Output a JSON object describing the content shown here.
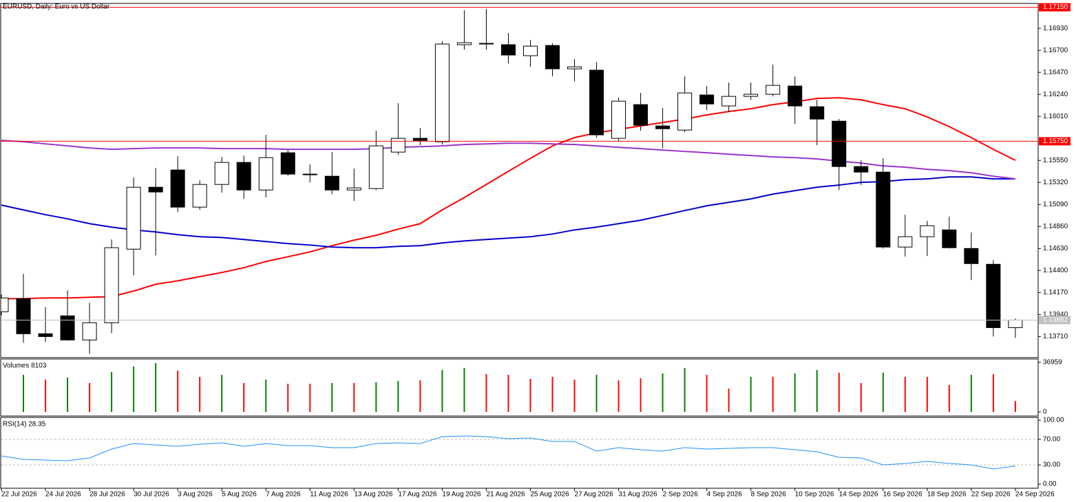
{
  "chart_data": [
    {
      "type": "candlestick",
      "title": "EURUSD, Daily:  Euro vs US Dollar",
      "categories": [
        "22 Jul 2026",
        null,
        "24 Jul 2026",
        null,
        "28 Jul 2026",
        null,
        "30 Jul 2026",
        null,
        "3 Aug 2026",
        null,
        "5 Aug 2026",
        null,
        "7 Aug 2026",
        null,
        "11 Aug 2026",
        null,
        "13 Aug 2026",
        null,
        "17 Aug 2026",
        null,
        "19 Aug 2026",
        null,
        "21 Aug 2026",
        null,
        "25 Aug 2026",
        null,
        "27 Aug 2026",
        null,
        "31 Aug 2026",
        null,
        "2 Sep 2026",
        null,
        "4 Sep 2026",
        null,
        "8 Sep 2026",
        null,
        "10 Sep 2026",
        null,
        "14 Sep 2026",
        null,
        "16 Sep 2026",
        null,
        "18 Sep 2026",
        null,
        "22 Sep 2026",
        null,
        "24 Sep 2026"
      ],
      "open": [
        1.13969,
        1.14105,
        1.13739,
        1.13926,
        1.13674,
        1.13854,
        1.14623,
        1.1527,
        1.1545,
        1.15062,
        1.15299,
        1.15529,
        1.15241,
        1.1563,
        1.15407,
        1.15385,
        1.15241,
        1.15256,
        1.15637,
        1.15781,
        1.15745,
        1.16759,
        1.16773,
        1.16759,
        1.16644,
        1.16751,
        1.16507,
        1.16493,
        1.15781,
        1.16133,
        1.1591,
        1.15867,
        1.16234,
        1.16119,
        1.16219,
        1.16241,
        1.16327,
        1.16111,
        1.1596,
        1.15486,
        1.15428,
        1.14645,
        1.14753,
        1.14824,
        1.1463,
        1.14465,
        1.13803
      ],
      "high": [
        1.14149,
        1.14364,
        1.14019,
        1.14192,
        1.14062,
        1.14724,
        1.15371,
        1.15472,
        1.15594,
        1.15342,
        1.15587,
        1.15601,
        1.15817,
        1.15658,
        1.15508,
        1.15637,
        1.15464,
        1.1586,
        1.16147,
        1.15889,
        1.16795,
        1.17118,
        1.17132,
        1.16881,
        1.16809,
        1.16773,
        1.16608,
        1.16579,
        1.16205,
        1.16255,
        1.16097,
        1.16428,
        1.16327,
        1.16363,
        1.16363,
        1.1655,
        1.16428,
        1.16183,
        1.15982,
        1.15551,
        1.15572,
        1.14983,
        1.14918,
        1.14961,
        1.14796,
        1.14508,
        1.13897
      ],
      "low": [
        1.13933,
        1.13645,
        1.13652,
        1.13667,
        1.1353,
        1.13746,
        1.1435,
        1.14558,
        1.15011,
        1.15033,
        1.15213,
        1.15148,
        1.15162,
        1.15392,
        1.15321,
        1.15198,
        1.15126,
        1.15241,
        1.15608,
        1.15709,
        1.15716,
        1.16708,
        1.16708,
        1.16564,
        1.16528,
        1.16428,
        1.16377,
        1.15788,
        1.15752,
        1.1586,
        1.1568,
        1.15845,
        1.16076,
        1.16054,
        1.16183,
        1.16219,
        1.15932,
        1.15709,
        1.15241,
        1.15292,
        1.1463,
        1.14544,
        1.14551,
        1.1463,
        1.143,
        1.1371,
        1.13696
      ],
      "close": [
        1.14113,
        1.13739,
        1.1371,
        1.13674,
        1.13854,
        1.14638,
        1.1527,
        1.1522,
        1.15062,
        1.15299,
        1.15529,
        1.15241,
        1.15579,
        1.15407,
        1.154,
        1.15241,
        1.15263,
        1.15702,
        1.15781,
        1.15759,
        1.16766,
        1.1678,
        1.16766,
        1.16651,
        1.16744,
        1.16507,
        1.16528,
        1.15817,
        1.16169,
        1.15917,
        1.15881,
        1.16255,
        1.1614,
        1.16219,
        1.16241,
        1.16334,
        1.16119,
        1.15982,
        1.15486,
        1.15428,
        1.14645,
        1.14753,
        1.14868,
        1.14638,
        1.14472,
        1.13803,
        1.13882
      ],
      "up_color": "#ffffff",
      "down_color": "#000000",
      "lines": [
        {
          "color": "#ff0000",
          "values": [
            1.14105,
            1.14105,
            1.14113,
            1.14113,
            1.1412,
            1.14127,
            1.14185,
            1.14256,
            1.14292,
            1.14336,
            1.14379,
            1.14429,
            1.14494,
            1.14544,
            1.14594,
            1.14659,
            1.14717,
            1.14767,
            1.14832,
            1.14889,
            1.15033,
            1.15162,
            1.15299,
            1.15436,
            1.15572,
            1.15702,
            1.15788,
            1.15838,
            1.15874,
            1.1591,
            1.15946,
            1.15982,
            1.16025,
            1.16061,
            1.1609,
            1.16133,
            1.16162,
            1.16198,
            1.16205,
            1.16183,
            1.16133,
            1.1609,
            1.16004,
            1.15903,
            1.15788,
            1.15666,
            1.15551
          ]
        },
        {
          "color": "#0000cd",
          "values": [
            1.15083,
            1.15033,
            1.14983,
            1.1494,
            1.14889,
            1.14853,
            1.14824,
            1.14803,
            1.14774,
            1.14753,
            1.14745,
            1.14724,
            1.14702,
            1.14681,
            1.14666,
            1.14645,
            1.14638,
            1.14638,
            1.14652,
            1.14659,
            1.14688,
            1.14709,
            1.14724,
            1.14738,
            1.14753,
            1.14781,
            1.14824,
            1.14853,
            1.14889,
            1.14925,
            1.14975,
            1.15026,
            1.15076,
            1.15112,
            1.15148,
            1.15198,
            1.15234,
            1.1527,
            1.15292,
            1.15321,
            1.15328,
            1.15349,
            1.15357,
            1.15378,
            1.15378,
            1.15357,
            1.15357
          ]
        },
        {
          "color": "#9932cc",
          "values": [
            1.15759,
            1.15745,
            1.15723,
            1.15702,
            1.1568,
            1.15666,
            1.15673,
            1.1568,
            1.1568,
            1.1568,
            1.15673,
            1.15673,
            1.15673,
            1.15666,
            1.15666,
            1.15666,
            1.15666,
            1.15673,
            1.15687,
            1.15694,
            1.15702,
            1.15716,
            1.15723,
            1.1573,
            1.1573,
            1.15723,
            1.15716,
            1.15702,
            1.15687,
            1.15673,
            1.15658,
            1.15644,
            1.1563,
            1.15615,
            1.15601,
            1.15587,
            1.15579,
            1.15565,
            1.15543,
            1.15522,
            1.15493,
            1.15479,
            1.15457,
            1.15443,
            1.15421,
            1.15385,
            1.15357
          ]
        }
      ],
      "ylim": [
        1.1349,
        1.1719
      ],
      "yticks": [
        {
          "value": 1.1693,
          "label": "1.16930"
        },
        {
          "value": 1.167,
          "label": "1.16700"
        },
        {
          "value": 1.1647,
          "label": "1.16470"
        },
        {
          "value": 1.1624,
          "label": "1.16240"
        },
        {
          "value": 1.1601,
          "label": "1.16010"
        },
        {
          "value": 1.1555,
          "label": "1.15550"
        },
        {
          "value": 1.1532,
          "label": "1.15320"
        },
        {
          "value": 1.1509,
          "label": "1.15090"
        },
        {
          "value": 1.1486,
          "label": "1.14860"
        },
        {
          "value": 1.1463,
          "label": "1.14630"
        },
        {
          "value": 1.144,
          "label": "1.14400"
        },
        {
          "value": 1.1417,
          "label": "1.14170"
        },
        {
          "value": 1.1394,
          "label": "1.13940"
        },
        {
          "value": 1.1371,
          "label": "1.13710"
        }
      ],
      "hlines": [
        {
          "value": 1.1715,
          "label": "1.17150",
          "color": "#ff0000"
        },
        {
          "value": 1.1575,
          "label": "1.15750",
          "color": "#ff0000"
        }
      ],
      "current_price": {
        "value": 1.13882,
        "label": "1.13882",
        "color": "#c0c0c0"
      }
    },
    {
      "type": "bar",
      "title": "Volumes 8103",
      "values": [
        null,
        27718,
        24125,
        25665,
        21559,
        29771,
        33878,
        36444,
        30798,
        26178,
        27718,
        21559,
        24125,
        21045,
        21045,
        21559,
        21559,
        22072,
        23099,
        23612,
        31311,
        32851,
        28232,
        27718,
        24638,
        26178,
        24125,
        27718,
        23612,
        25152,
        28745,
        32851,
        27718,
        17452,
        26178,
        26178,
        28745,
        31311,
        29258,
        21559,
        29258,
        26178,
        26178,
        20018,
        27718,
        28232,
        8103
      ],
      "colors": [
        null,
        "#008000",
        "#ff0000",
        "#008000",
        "#ff0000",
        "#008000",
        "#008000",
        "#008000",
        "#ff0000",
        "#ff0000",
        "#008000",
        "#ff0000",
        "#008000",
        "#ff0000",
        "#ff0000",
        "#008000",
        "#ff0000",
        "#008000",
        "#008000",
        "#ff0000",
        "#008000",
        "#008000",
        "#ff0000",
        "#ff0000",
        "#ff0000",
        "#ff0000",
        "#ff0000",
        "#008000",
        "#ff0000",
        "#ff0000",
        "#008000",
        "#008000",
        "#ff0000",
        "#ff0000",
        "#008000",
        "#ff0000",
        "#008000",
        "#008000",
        "#ff0000",
        "#ff0000",
        "#008000",
        "#ff0000",
        "#ff0000",
        "#ff0000",
        "#008000",
        "#ff0000",
        "#ff0000"
      ],
      "ylim": [
        -3080,
        39526
      ],
      "yticks": [
        0,
        36959
      ]
    },
    {
      "type": "line",
      "title": "RSI(14) 28.35",
      "color": "#1e90ff",
      "values": [
        44.1,
        38.7,
        37.6,
        36.6,
        40.9,
        54.8,
        63.4,
        61.3,
        59.1,
        62.4,
        64.5,
        59.1,
        63.4,
        60.2,
        60.2,
        57.0,
        57.0,
        63.4,
        64.5,
        63.4,
        74.2,
        75.3,
        74.2,
        71.0,
        72.0,
        66.7,
        66.7,
        51.6,
        57.0,
        53.8,
        51.6,
        57.0,
        54.8,
        55.9,
        57.0,
        57.0,
        53.8,
        50.5,
        41.9,
        40.9,
        30.1,
        32.3,
        35.5,
        32.3,
        30.1,
        23.7,
        28.35
      ],
      "ylim": [
        -6.45,
        104.3
      ],
      "yticks": [
        {
          "value": 100,
          "label": "100.00"
        },
        {
          "value": 70,
          "label": "70.00"
        },
        {
          "value": 30,
          "label": "30.00"
        },
        {
          "value": 0,
          "label": "0.00"
        }
      ],
      "levels": [
        70,
        30
      ]
    }
  ]
}
